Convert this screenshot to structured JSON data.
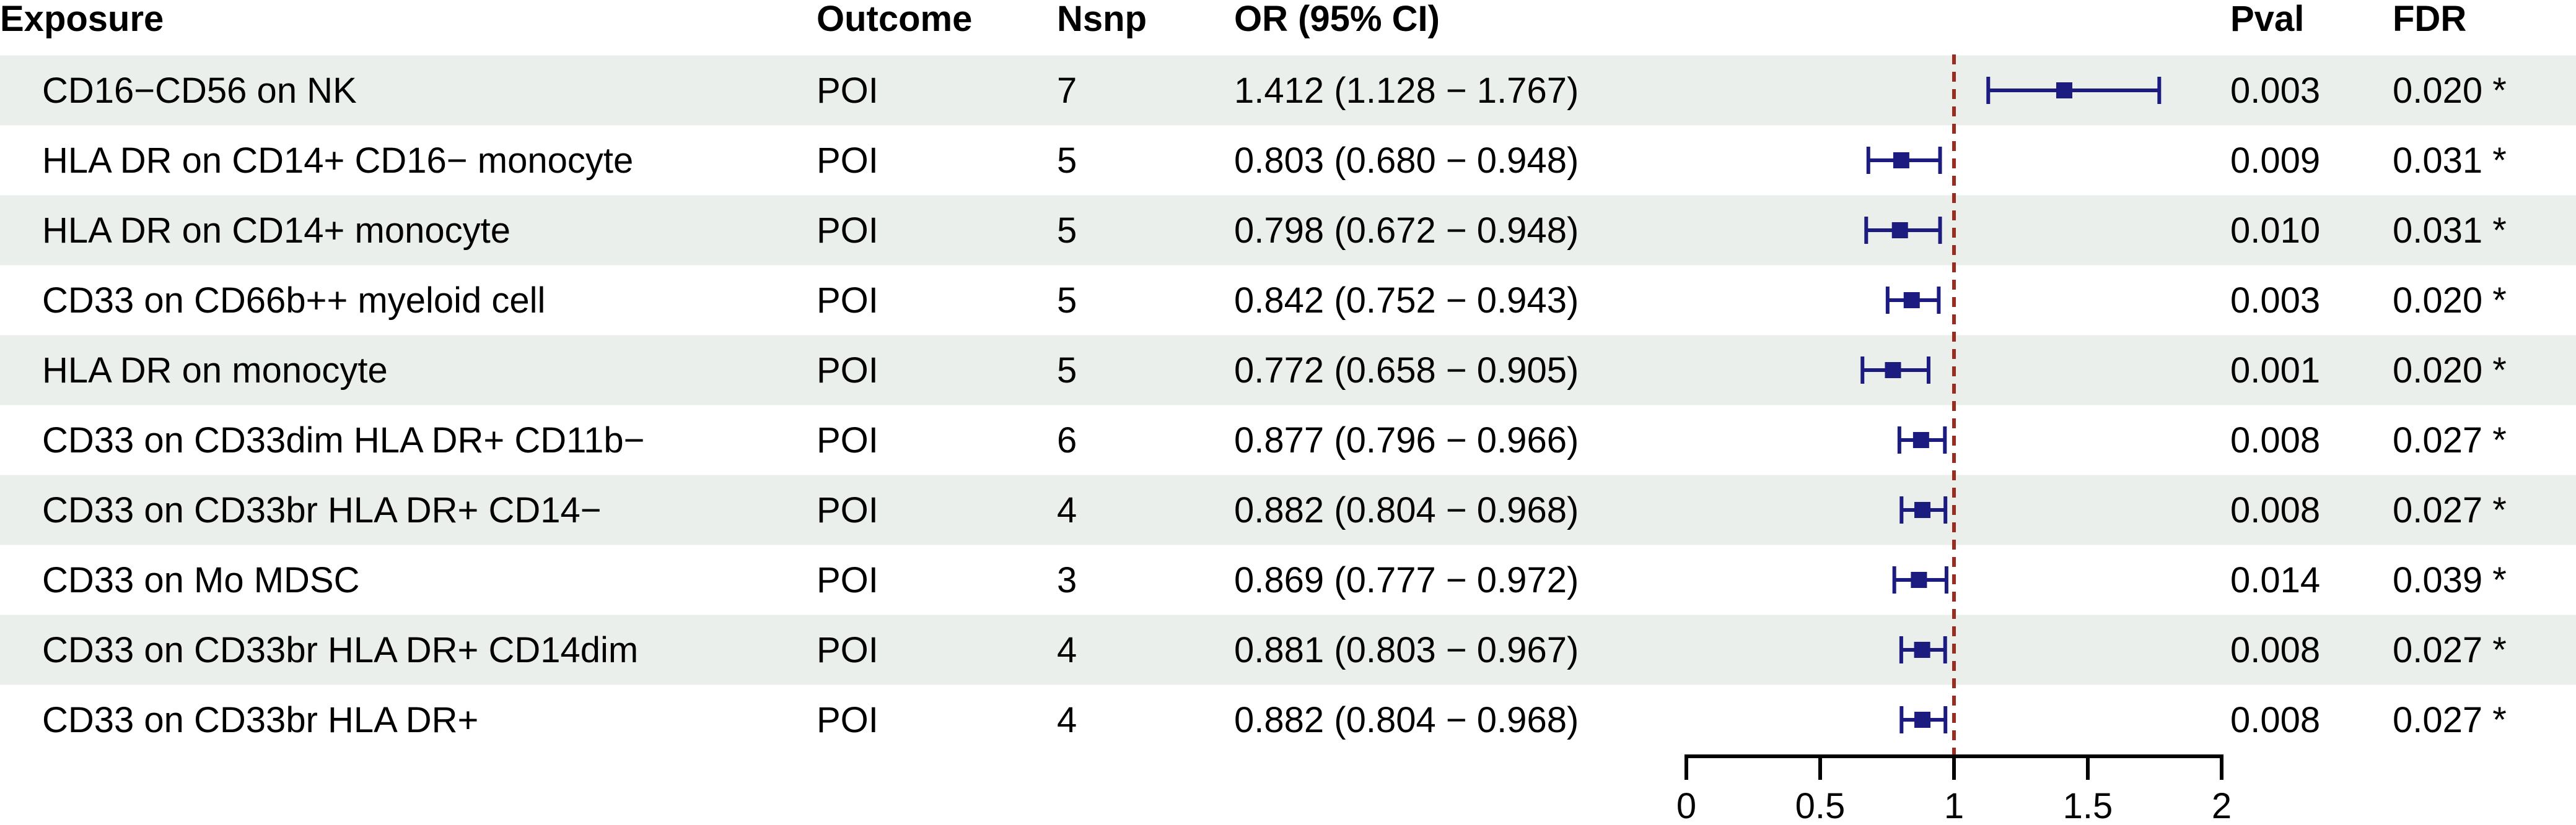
{
  "chart_data": {
    "type": "forest",
    "headers": {
      "exposure": "Exposure",
      "outcome": "Outcome",
      "nsnp": "Nsnp",
      "or_ci": "OR (95% CI)",
      "pval": "Pval",
      "fdr": "FDR"
    },
    "rows": [
      {
        "exposure": "CD16−CD56 on NK",
        "outcome": "POI",
        "nsnp": "7",
        "or_ci": "1.412 (1.128 − 1.767)",
        "or": 1.412,
        "lo": 1.128,
        "hi": 1.767,
        "pval": "0.003",
        "fdr": "0.020 *"
      },
      {
        "exposure": "HLA DR on CD14+ CD16− monocyte",
        "outcome": "POI",
        "nsnp": "5",
        "or_ci": "0.803 (0.680 − 0.948)",
        "or": 0.803,
        "lo": 0.68,
        "hi": 0.948,
        "pval": "0.009",
        "fdr": "0.031 *"
      },
      {
        "exposure": "HLA DR on CD14+ monocyte",
        "outcome": "POI",
        "nsnp": "5",
        "or_ci": "0.798 (0.672 − 0.948)",
        "or": 0.798,
        "lo": 0.672,
        "hi": 0.948,
        "pval": "0.010",
        "fdr": "0.031 *"
      },
      {
        "exposure": "CD33 on CD66b++ myeloid cell",
        "outcome": "POI",
        "nsnp": "5",
        "or_ci": "0.842 (0.752 − 0.943)",
        "or": 0.842,
        "lo": 0.752,
        "hi": 0.943,
        "pval": "0.003",
        "fdr": "0.020 *"
      },
      {
        "exposure": "HLA DR on monocyte",
        "outcome": "POI",
        "nsnp": "5",
        "or_ci": "0.772 (0.658 − 0.905)",
        "or": 0.772,
        "lo": 0.658,
        "hi": 0.905,
        "pval": "0.001",
        "fdr": "0.020 *"
      },
      {
        "exposure": "CD33 on CD33dim HLA DR+ CD11b−",
        "outcome": "POI",
        "nsnp": "6",
        "or_ci": "0.877 (0.796 − 0.966)",
        "or": 0.877,
        "lo": 0.796,
        "hi": 0.966,
        "pval": "0.008",
        "fdr": "0.027 *"
      },
      {
        "exposure": "CD33 on CD33br HLA DR+ CD14−",
        "outcome": "POI",
        "nsnp": "4",
        "or_ci": "0.882 (0.804 − 0.968)",
        "or": 0.882,
        "lo": 0.804,
        "hi": 0.968,
        "pval": "0.008",
        "fdr": "0.027 *"
      },
      {
        "exposure": "CD33 on Mo MDSC",
        "outcome": "POI",
        "nsnp": "3",
        "or_ci": "0.869 (0.777 − 0.972)",
        "or": 0.869,
        "lo": 0.777,
        "hi": 0.972,
        "pval": "0.014",
        "fdr": "0.039 *"
      },
      {
        "exposure": "CD33 on CD33br HLA DR+ CD14dim",
        "outcome": "POI",
        "nsnp": "4",
        "or_ci": "0.881 (0.803 − 0.967)",
        "or": 0.881,
        "lo": 0.803,
        "hi": 0.967,
        "pval": "0.008",
        "fdr": "0.027 *"
      },
      {
        "exposure": "CD33 on CD33br HLA DR+",
        "outcome": "POI",
        "nsnp": "4",
        "or_ci": "0.882 (0.804 − 0.968)",
        "or": 0.882,
        "lo": 0.804,
        "hi": 0.968,
        "pval": "0.008",
        "fdr": "0.027 *"
      }
    ],
    "xlim": [
      0,
      2
    ],
    "x_ticks": [
      "0",
      "0.5",
      "1",
      "1.5",
      "2"
    ],
    "x_tick_values": [
      0,
      0.5,
      1,
      1.5,
      2
    ],
    "reference_line": 1,
    "colors": {
      "marker": "#1c1c80",
      "reference_line": "#9b2d20",
      "stripe": "#ebefec",
      "axis": "#000000"
    }
  }
}
